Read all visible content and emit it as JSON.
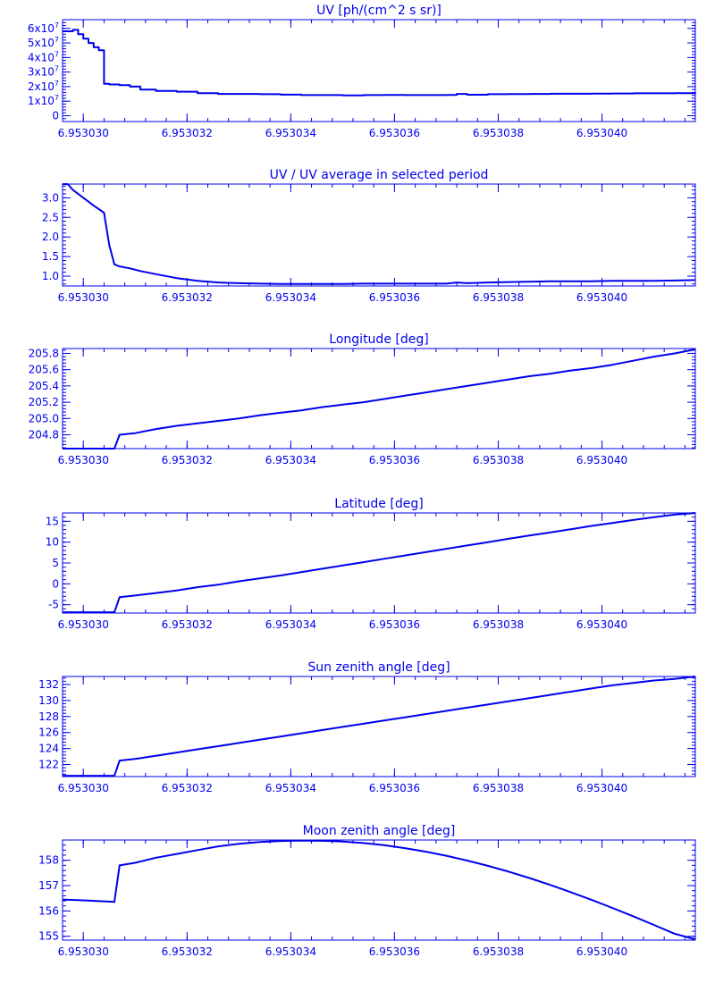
{
  "style": {
    "color": "#0000ee"
  },
  "chart_data": [
    {
      "type": "line",
      "title": "UV [ph/(cm^2 s sr)]",
      "xlim": [
        6.9530296,
        6.9530418
      ],
      "ylim": [
        -4000000,
        66000000
      ],
      "x_ticks": [
        6.95303,
        6.953032,
        6.953034,
        6.953036,
        6.953038,
        6.95304
      ],
      "x_tick_labels": [
        "6.953030",
        "6.953032",
        "6.953034",
        "6.953036",
        "6.953038",
        "6.953040"
      ],
      "y_ticks": [
        0,
        10000000,
        20000000,
        30000000,
        40000000,
        50000000,
        60000000
      ],
      "y_tick_labels": [
        {
          "base": "0",
          "exp": ""
        },
        {
          "base": "1x10",
          "exp": "7"
        },
        {
          "base": "2x10",
          "exp": "7"
        },
        {
          "base": "3x10",
          "exp": "7"
        },
        {
          "base": "4x10",
          "exp": "7"
        },
        {
          "base": "5x10",
          "exp": "7"
        },
        {
          "base": "6x10",
          "exp": "7"
        }
      ],
      "step": true,
      "series": [
        {
          "x": [
            6.9530296,
            6.9530298,
            6.9530299,
            6.95303,
            6.9530301,
            6.9530302,
            6.9530303,
            6.9530304,
            6.9530305,
            6.9530307,
            6.9530309,
            6.9530311,
            6.9530314,
            6.9530318,
            6.9530322,
            6.9530326,
            6.953033,
            6.9530334,
            6.9530338,
            6.9530342,
            6.9530346,
            6.953035,
            6.9530354,
            6.9530358,
            6.9530362,
            6.9530366,
            6.953037,
            6.9530372,
            6.9530374,
            6.9530378,
            6.9530382,
            6.9530386,
            6.953039,
            6.9530394,
            6.9530398,
            6.9530402,
            6.9530406,
            6.953041,
            6.9530414,
            6.9530418
          ],
          "y": [
            58000000,
            59000000,
            56000000,
            53000000,
            50000000,
            47000000,
            45000000,
            22000000,
            21500000,
            21000000,
            20000000,
            18000000,
            17000000,
            16500000,
            15500000,
            15000000,
            15000000,
            14800000,
            14500000,
            14200000,
            14200000,
            14000000,
            14200000,
            14300000,
            14200000,
            14200000,
            14300000,
            15000000,
            14400000,
            14800000,
            14900000,
            15000000,
            15100000,
            15100000,
            15200000,
            15300000,
            15400000,
            15400000,
            15500000,
            15600000
          ]
        }
      ]
    },
    {
      "type": "line",
      "title": "UV / UV average in selected period",
      "xlim": [
        6.9530296,
        6.9530418
      ],
      "ylim": [
        0.75,
        3.35
      ],
      "x_ticks": [
        6.95303,
        6.953032,
        6.953034,
        6.953036,
        6.953038,
        6.95304
      ],
      "x_tick_labels": [
        "6.953030",
        "6.953032",
        "6.953034",
        "6.953036",
        "6.953038",
        "6.953040"
      ],
      "y_ticks": [
        1.0,
        1.5,
        2.0,
        2.5,
        3.0
      ],
      "y_tick_labels": [
        {
          "base": "1.0",
          "exp": ""
        },
        {
          "base": "1.5",
          "exp": ""
        },
        {
          "base": "2.0",
          "exp": ""
        },
        {
          "base": "2.5",
          "exp": ""
        },
        {
          "base": "3.0",
          "exp": ""
        }
      ],
      "step": false,
      "series": [
        {
          "x": [
            6.9530296,
            6.9530297,
            6.9530298,
            6.95303,
            6.9530302,
            6.9530304,
            6.9530305,
            6.9530306,
            6.9530307,
            6.9530309,
            6.9530311,
            6.9530314,
            6.9530318,
            6.9530322,
            6.9530326,
            6.953033,
            6.9530334,
            6.9530338,
            6.9530342,
            6.9530346,
            6.953035,
            6.9530354,
            6.9530358,
            6.9530362,
            6.9530366,
            6.953037,
            6.9530372,
            6.9530374,
            6.9530378,
            6.9530382,
            6.9530386,
            6.953039,
            6.9530394,
            6.9530398,
            6.9530402,
            6.9530406,
            6.953041,
            6.9530414,
            6.9530418
          ],
          "y": [
            3.35,
            3.35,
            3.2,
            3.0,
            2.8,
            2.62,
            1.8,
            1.3,
            1.25,
            1.2,
            1.13,
            1.05,
            0.95,
            0.88,
            0.84,
            0.82,
            0.81,
            0.8,
            0.8,
            0.8,
            0.8,
            0.81,
            0.81,
            0.81,
            0.81,
            0.81,
            0.84,
            0.82,
            0.84,
            0.85,
            0.86,
            0.87,
            0.87,
            0.87,
            0.88,
            0.88,
            0.88,
            0.89,
            0.9
          ]
        }
      ]
    },
    {
      "type": "line",
      "title": "Longitude [deg]",
      "xlim": [
        6.9530296,
        6.9530418
      ],
      "ylim": [
        204.63,
        205.86
      ],
      "x_ticks": [
        6.95303,
        6.953032,
        6.953034,
        6.953036,
        6.953038,
        6.95304
      ],
      "x_tick_labels": [
        "6.953030",
        "6.953032",
        "6.953034",
        "6.953036",
        "6.953038",
        "6.953040"
      ],
      "y_ticks": [
        204.8,
        205.0,
        205.2,
        205.4,
        205.6,
        205.8
      ],
      "y_tick_labels": [
        {
          "base": "204.8",
          "exp": ""
        },
        {
          "base": "205.0",
          "exp": ""
        },
        {
          "base": "205.2",
          "exp": ""
        },
        {
          "base": "205.4",
          "exp": ""
        },
        {
          "base": "205.6",
          "exp": ""
        },
        {
          "base": "205.8",
          "exp": ""
        }
      ],
      "step": false,
      "series": [
        {
          "x": [
            6.9530296,
            6.95303,
            6.9530304,
            6.9530306,
            6.9530307,
            6.953031,
            6.9530314,
            6.9530318,
            6.9530322,
            6.9530326,
            6.953033,
            6.9530334,
            6.9530338,
            6.9530342,
            6.9530346,
            6.953035,
            6.9530354,
            6.9530358,
            6.9530362,
            6.9530366,
            6.953037,
            6.9530374,
            6.9530378,
            6.9530382,
            6.9530386,
            6.953039,
            6.9530394,
            6.9530398,
            6.9530402,
            6.9530406,
            6.953041,
            6.9530414,
            6.9530418
          ],
          "y": [
            204.63,
            204.63,
            204.63,
            204.63,
            204.8,
            204.82,
            204.87,
            204.91,
            204.94,
            204.97,
            205.0,
            205.04,
            205.07,
            205.1,
            205.14,
            205.17,
            205.2,
            205.24,
            205.28,
            205.32,
            205.36,
            205.4,
            205.44,
            205.48,
            205.52,
            205.55,
            205.59,
            205.62,
            205.66,
            205.71,
            205.76,
            205.8,
            205.85
          ]
        }
      ]
    },
    {
      "type": "line",
      "title": "Latitude [deg]",
      "xlim": [
        6.9530296,
        6.9530418
      ],
      "ylim": [
        -7.0,
        17.0
      ],
      "x_ticks": [
        6.95303,
        6.953032,
        6.953034,
        6.953036,
        6.953038,
        6.95304
      ],
      "x_tick_labels": [
        "6.953030",
        "6.953032",
        "6.953034",
        "6.953036",
        "6.953038",
        "6.953040"
      ],
      "y_ticks": [
        -5,
        0,
        5,
        10,
        15
      ],
      "y_tick_labels": [
        {
          "base": "-5",
          "exp": ""
        },
        {
          "base": "0",
          "exp": ""
        },
        {
          "base": "5",
          "exp": ""
        },
        {
          "base": "10",
          "exp": ""
        },
        {
          "base": "15",
          "exp": ""
        }
      ],
      "step": false,
      "series": [
        {
          "x": [
            6.9530296,
            6.95303,
            6.9530304,
            6.9530306,
            6.9530307,
            6.953031,
            6.9530314,
            6.9530318,
            6.9530322,
            6.9530326,
            6.953033,
            6.9530334,
            6.9530338,
            6.9530342,
            6.9530346,
            6.953035,
            6.9530354,
            6.9530358,
            6.9530362,
            6.9530366,
            6.953037,
            6.9530374,
            6.9530378,
            6.9530382,
            6.9530386,
            6.953039,
            6.9530394,
            6.9530398,
            6.9530402,
            6.9530406,
            6.953041,
            6.9530414,
            6.9530418
          ],
          "y": [
            -6.8,
            -6.8,
            -6.8,
            -6.8,
            -3.2,
            -2.8,
            -2.2,
            -1.6,
            -0.8,
            -0.2,
            0.6,
            1.3,
            2.0,
            2.8,
            3.6,
            4.4,
            5.2,
            6.0,
            6.8,
            7.6,
            8.4,
            9.2,
            10.0,
            10.8,
            11.6,
            12.3,
            13.1,
            13.9,
            14.6,
            15.3,
            16.0,
            16.6,
            17.0
          ]
        }
      ]
    },
    {
      "type": "line",
      "title": "Sun zenith angle [deg]",
      "xlim": [
        6.9530296,
        6.9530418
      ],
      "ylim": [
        120.5,
        133.0
      ],
      "x_ticks": [
        6.95303,
        6.953032,
        6.953034,
        6.953036,
        6.953038,
        6.95304
      ],
      "x_tick_labels": [
        "6.953030",
        "6.953032",
        "6.953034",
        "6.953036",
        "6.953038",
        "6.953040"
      ],
      "y_ticks": [
        122,
        124,
        126,
        128,
        130,
        132
      ],
      "y_tick_labels": [
        {
          "base": "122",
          "exp": ""
        },
        {
          "base": "124",
          "exp": ""
        },
        {
          "base": "126",
          "exp": ""
        },
        {
          "base": "128",
          "exp": ""
        },
        {
          "base": "130",
          "exp": ""
        },
        {
          "base": "132",
          "exp": ""
        }
      ],
      "step": false,
      "series": [
        {
          "x": [
            6.9530296,
            6.95303,
            6.9530304,
            6.9530306,
            6.9530307,
            6.953031,
            6.9530314,
            6.9530318,
            6.9530322,
            6.9530326,
            6.953033,
            6.9530334,
            6.9530338,
            6.9530342,
            6.9530346,
            6.953035,
            6.9530354,
            6.9530358,
            6.9530362,
            6.9530366,
            6.953037,
            6.9530374,
            6.9530378,
            6.9530382,
            6.9530386,
            6.953039,
            6.9530394,
            6.9530398,
            6.9530402,
            6.9530406,
            6.953041,
            6.9530414,
            6.9530418
          ],
          "y": [
            120.6,
            120.6,
            120.6,
            120.6,
            122.5,
            122.7,
            123.1,
            123.5,
            123.9,
            124.3,
            124.7,
            125.1,
            125.5,
            125.9,
            126.3,
            126.7,
            127.1,
            127.5,
            127.9,
            128.3,
            128.7,
            129.1,
            129.5,
            129.9,
            130.3,
            130.7,
            131.1,
            131.5,
            131.9,
            132.2,
            132.5,
            132.7,
            133.0
          ]
        }
      ]
    },
    {
      "type": "line",
      "title": "Moon zenith angle [deg]",
      "xlim": [
        6.9530296,
        6.9530418
      ],
      "ylim": [
        154.85,
        158.8
      ],
      "x_ticks": [
        6.95303,
        6.953032,
        6.953034,
        6.953036,
        6.953038,
        6.95304
      ],
      "x_tick_labels": [
        "6.953030",
        "6.953032",
        "6.953034",
        "6.953036",
        "6.953038",
        "6.953040"
      ],
      "y_ticks": [
        155,
        156,
        157,
        158
      ],
      "y_tick_labels": [
        {
          "base": "155",
          "exp": ""
        },
        {
          "base": "156",
          "exp": ""
        },
        {
          "base": "157",
          "exp": ""
        },
        {
          "base": "158",
          "exp": ""
        }
      ],
      "step": false,
      "series": [
        {
          "x": [
            6.9530296,
            6.95303,
            6.9530304,
            6.9530306,
            6.9530307,
            6.953031,
            6.9530314,
            6.9530318,
            6.9530322,
            6.9530326,
            6.953033,
            6.9530334,
            6.9530338,
            6.9530342,
            6.9530346,
            6.953035,
            6.9530354,
            6.9530358,
            6.9530362,
            6.9530366,
            6.953037,
            6.9530374,
            6.9530378,
            6.9530382,
            6.9530386,
            6.953039,
            6.9530394,
            6.9530398,
            6.9530402,
            6.9530406,
            6.953041,
            6.9530414,
            6.9530418
          ],
          "y": [
            156.45,
            156.42,
            156.38,
            156.36,
            157.8,
            157.9,
            158.1,
            158.25,
            158.4,
            158.55,
            158.65,
            158.72,
            158.76,
            158.78,
            158.77,
            158.74,
            158.68,
            158.6,
            158.48,
            158.34,
            158.18,
            157.99,
            157.78,
            157.55,
            157.3,
            157.03,
            156.74,
            156.44,
            156.12,
            155.79,
            155.45,
            155.1,
            154.88
          ]
        }
      ]
    }
  ]
}
